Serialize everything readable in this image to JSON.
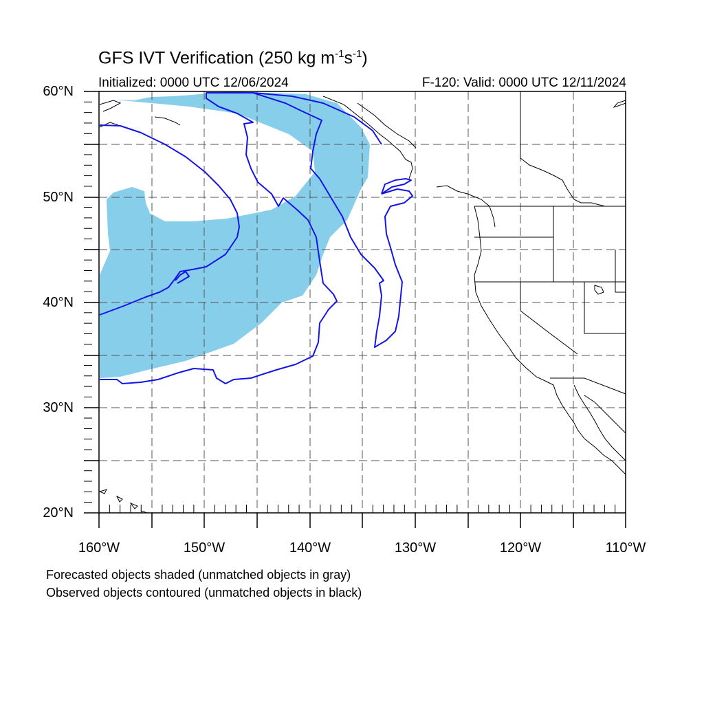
{
  "title": {
    "main": "GFS IVT Verification (250 kg m",
    "sup1": "-1",
    "mid": "s",
    "sup2": "-1",
    "end": ")"
  },
  "initialized": "Initialized: 0000 UTC 12/06/2024",
  "valid": "F-120: Valid: 0000 UTC 12/11/2024",
  "lat_labels": [
    "60°N",
    "50°N",
    "40°N",
    "30°N",
    "20°N"
  ],
  "lon_labels": [
    "160°W",
    "150°W",
    "140°W",
    "130°W",
    "120°W",
    "110°W"
  ],
  "notes": [
    "Forecasted objects shaded (unmatched objects in gray)",
    "Observed objects contoured (unmatched objects in black)"
  ],
  "map": {
    "lon_range": [
      -160,
      -110
    ],
    "lat_range": [
      20,
      60
    ],
    "grid_interval_deg": 5,
    "forecast_fill_color": "#87CEEB",
    "observed_contour_color": "#1414E6",
    "coastline_color": "#000000"
  }
}
